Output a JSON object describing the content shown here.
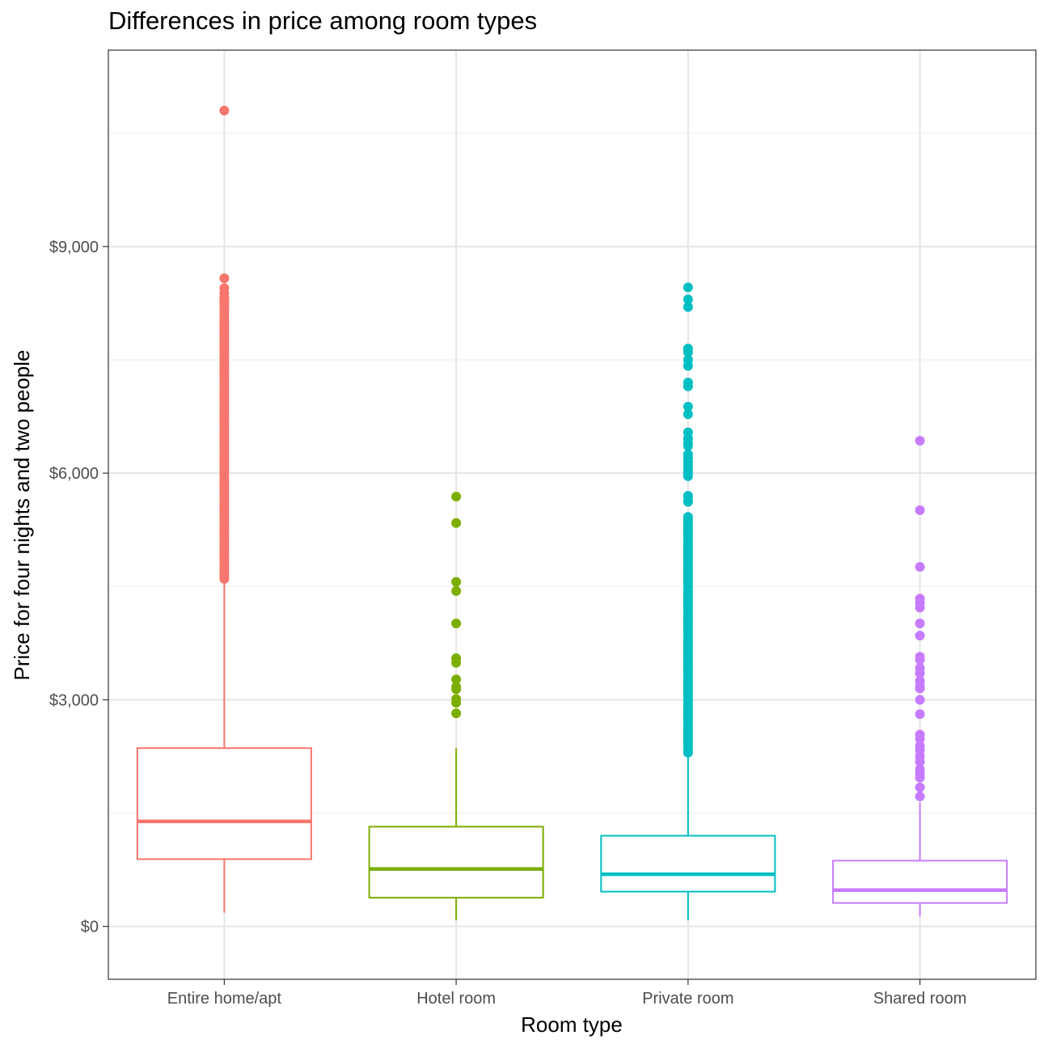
{
  "chart_data": {
    "type": "boxplot",
    "title": "Differences in price among room types",
    "xlabel": "Room type",
    "ylabel": "Price for four nights and two people",
    "ylim": [
      -700,
      11600
    ],
    "yticks": [
      0,
      3000,
      6000,
      9000
    ],
    "ytick_labels": [
      "$0",
      "$3,000",
      "$6,000",
      "$9,000"
    ],
    "grid": true,
    "legend": "none",
    "categories": [
      "Entire home/apt",
      "Hotel room",
      "Private room",
      "Shared room"
    ],
    "series": [
      {
        "category": "Entire home/apt",
        "color": "#F8766D",
        "min": 180,
        "q1": 890,
        "median": 1390,
        "q3": 2360,
        "max": 4560,
        "outliers": [
          10800,
          8580,
          8450,
          8380,
          8330,
          8300,
          8280,
          8250,
          8220,
          8200,
          8150,
          8100,
          8060,
          8020,
          7980,
          7940,
          7900,
          7860,
          7820,
          7780,
          7740,
          7700,
          7660,
          7620,
          7580,
          7540,
          7500,
          7460,
          7420,
          7380,
          7340,
          7300,
          7260,
          7220,
          7180,
          7140,
          7100,
          7060,
          7020,
          6980,
          6940,
          6900,
          6860,
          6820,
          6780,
          6740,
          6700,
          6660,
          6620,
          6580,
          6540,
          6500,
          6460,
          6420,
          6380,
          6340,
          6300,
          6260,
          6220,
          6180,
          6140,
          6100,
          6060,
          6020,
          5980,
          5940,
          5900,
          5860,
          5820,
          5780,
          5740,
          5700,
          5660,
          5620,
          5580,
          5540,
          5500,
          5460,
          5420,
          5380,
          5340,
          5300,
          5260,
          5220,
          5180,
          5140,
          5100,
          5060,
          5020,
          4980,
          4940,
          4900,
          4860,
          4820,
          4780,
          4740,
          4700,
          4660,
          4630,
          4600
        ]
      },
      {
        "category": "Hotel room",
        "color": "#7CAE00",
        "min": 80,
        "q1": 380,
        "median": 760,
        "q3": 1320,
        "max": 2360,
        "outliers": [
          5690,
          5340,
          4560,
          4440,
          4010,
          3550,
          3490,
          3270,
          3170,
          3140,
          3010,
          2960,
          2820
        ]
      },
      {
        "category": "Private room",
        "color": "#00BFC4",
        "min": 80,
        "q1": 460,
        "median": 690,
        "q3": 1200,
        "max": 2260,
        "outliers": [
          8460,
          8300,
          8200,
          7650,
          7600,
          7500,
          7420,
          7200,
          7150,
          6880,
          6780,
          6540,
          6460,
          6400,
          6360,
          6250,
          6200,
          6150,
          6100,
          6050,
          6000,
          5960,
          5700,
          5640,
          5620,
          5420,
          5380,
          5340,
          5300,
          5260,
          5220,
          5180,
          5140,
          5100,
          5060,
          5020,
          4980,
          4940,
          4900,
          4860,
          4820,
          4780,
          4740,
          4700,
          4660,
          4620,
          4580,
          4540,
          4500,
          4460,
          4420,
          4380,
          4340,
          4300,
          4260,
          4220,
          4180,
          4140,
          4100,
          4060,
          4020,
          3980,
          3940,
          3900,
          3860,
          3820,
          3780,
          3740,
          3700,
          3660,
          3620,
          3580,
          3540,
          3500,
          3460,
          3420,
          3380,
          3340,
          3300,
          3260,
          3220,
          3180,
          3140,
          3100,
          3060,
          3020,
          2980,
          2940,
          2900,
          2860,
          2820,
          2780,
          2740,
          2700,
          2660,
          2620,
          2580,
          2540,
          2500,
          2460,
          2420,
          2380,
          2340,
          2300
        ]
      },
      {
        "category": "Shared room",
        "color": "#C77CFF",
        "min": 130,
        "q1": 310,
        "median": 480,
        "q3": 870,
        "max": 1640,
        "outliers": [
          6430,
          5510,
          4760,
          4340,
          4280,
          4220,
          4010,
          3850,
          3570,
          3530,
          3420,
          3350,
          3250,
          3180,
          3150,
          3000,
          2810,
          2540,
          2480,
          2390,
          2330,
          2250,
          2180,
          2080,
          2020,
          1970,
          1840,
          1720
        ]
      }
    ]
  }
}
